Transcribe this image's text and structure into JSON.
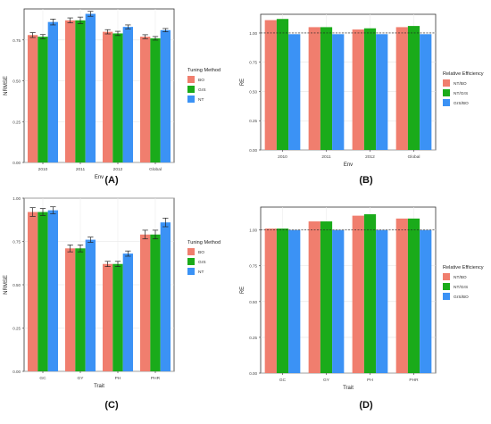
{
  "colors": {
    "BO": "#f07e6e",
    "GrS": "#1aab1a",
    "NT": "#3b92f5",
    "NT/BO": "#f07e6e",
    "NT/GrS": "#1aab1a",
    "GrS/BO": "#3b92f5"
  },
  "panel_labels": [
    "(A)",
    "(B)",
    "(C)",
    "(D)"
  ],
  "chart_data": [
    {
      "type": "bar",
      "panel": "(A)",
      "xlabel": "Env",
      "ylabel": "NRMSE",
      "categories": [
        "2010",
        "2011",
        "2012",
        "Global"
      ],
      "ylim": [
        0,
        0.94
      ],
      "yticks": [
        "0.00",
        "0.25",
        "0.50",
        "0.75"
      ],
      "grid": true,
      "error_bars": true,
      "legend_title": "Tuning Method",
      "legend_position": "right",
      "series": [
        {
          "name": "BO",
          "values": [
            0.78,
            0.87,
            0.8,
            0.77
          ],
          "err": [
            0.015,
            0.015,
            0.013,
            0.012
          ]
        },
        {
          "name": "GrS",
          "values": [
            0.77,
            0.87,
            0.79,
            0.76
          ],
          "err": [
            0.013,
            0.02,
            0.013,
            0.011
          ]
        },
        {
          "name": "NT",
          "values": [
            0.86,
            0.91,
            0.83,
            0.81
          ],
          "err": [
            0.018,
            0.015,
            0.012,
            0.01
          ]
        }
      ]
    },
    {
      "type": "bar",
      "panel": "(B)",
      "xlabel": "Env",
      "ylabel": "RE",
      "categories": [
        "2010",
        "2011",
        "2012",
        "Global"
      ],
      "ylim": [
        0,
        1.16
      ],
      "yticks": [
        "0.00",
        "0.25",
        "0.50",
        "0.75",
        "1.00"
      ],
      "reference_line": 1.0,
      "grid": true,
      "error_bars": false,
      "legend_title": "Relative Efficiency",
      "legend_position": "right",
      "series": [
        {
          "name": "NT/BO",
          "values": [
            1.11,
            1.05,
            1.03,
            1.05
          ]
        },
        {
          "name": "NT/GrS",
          "values": [
            1.12,
            1.05,
            1.04,
            1.06
          ]
        },
        {
          "name": "GrS/BO",
          "values": [
            0.99,
            0.99,
            0.99,
            0.99
          ]
        }
      ]
    },
    {
      "type": "bar",
      "panel": "(C)",
      "xlabel": "Trait",
      "ylabel": "NRMSE",
      "categories": [
        "GC",
        "GY",
        "PH",
        "PHR"
      ],
      "ylim": [
        0,
        1.0
      ],
      "yticks": [
        "0.00",
        "0.25",
        "0.50",
        "0.75",
        "1.00"
      ],
      "grid": true,
      "error_bars": true,
      "legend_title": "Tuning Method",
      "legend_position": "right",
      "series": [
        {
          "name": "BO",
          "values": [
            0.92,
            0.71,
            0.62,
            0.79
          ],
          "err": [
            0.025,
            0.02,
            0.015,
            0.025
          ]
        },
        {
          "name": "GrS",
          "values": [
            0.92,
            0.71,
            0.62,
            0.79
          ],
          "err": [
            0.02,
            0.02,
            0.015,
            0.025
          ]
        },
        {
          "name": "NT",
          "values": [
            0.93,
            0.76,
            0.68,
            0.86
          ],
          "err": [
            0.02,
            0.015,
            0.015,
            0.025
          ]
        }
      ]
    },
    {
      "type": "bar",
      "panel": "(D)",
      "xlabel": "Trait",
      "ylabel": "RE",
      "categories": [
        "GC",
        "GY",
        "PH",
        "PHR"
      ],
      "ylim": [
        0,
        1.16
      ],
      "yticks": [
        "0.00",
        "0.25",
        "0.50",
        "0.75",
        "1.00"
      ],
      "reference_line": 1.0,
      "grid": true,
      "error_bars": false,
      "legend_title": "Relative Efficiency",
      "legend_position": "right",
      "series": [
        {
          "name": "NT/BO",
          "values": [
            1.01,
            1.06,
            1.1,
            1.08
          ]
        },
        {
          "name": "NT/GrS",
          "values": [
            1.01,
            1.06,
            1.11,
            1.08
          ]
        },
        {
          "name": "GrS/BO",
          "values": [
            1.0,
            1.0,
            1.0,
            1.0
          ]
        }
      ]
    }
  ]
}
